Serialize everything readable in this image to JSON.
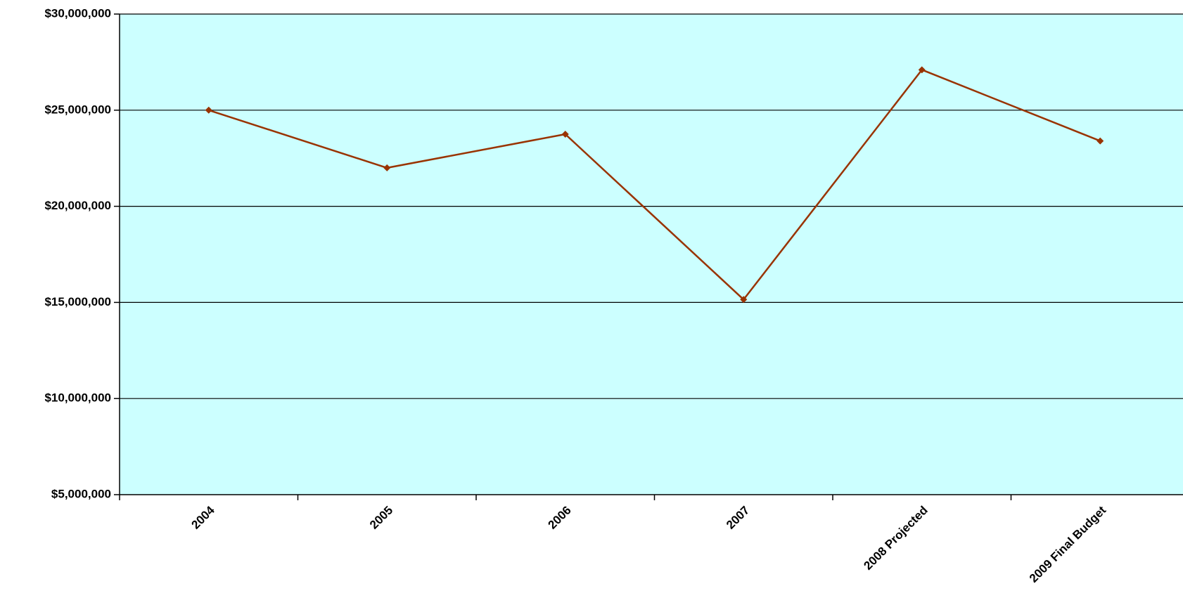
{
  "chart_data": {
    "type": "line",
    "categories": [
      "2004",
      "2005",
      "2006",
      "2007",
      "2008 Projected",
      "2009 Final Budget"
    ],
    "series": [
      {
        "values": [
          25000000,
          22000000,
          23750000,
          15150000,
          27100000,
          23400000
        ]
      }
    ],
    "ylim": [
      5000000,
      30000000
    ],
    "yticks": [
      5000000,
      10000000,
      15000000,
      20000000,
      25000000,
      30000000
    ],
    "ytick_labels": [
      "$5,000,000",
      "$10,000,000",
      "$15,000,000",
      "$20,000,000",
      "$25,000,000",
      "$30,000,000"
    ],
    "grid": true,
    "colors": {
      "plot_background": "#ccffff",
      "line": "#993300",
      "grid": "#000000"
    }
  }
}
